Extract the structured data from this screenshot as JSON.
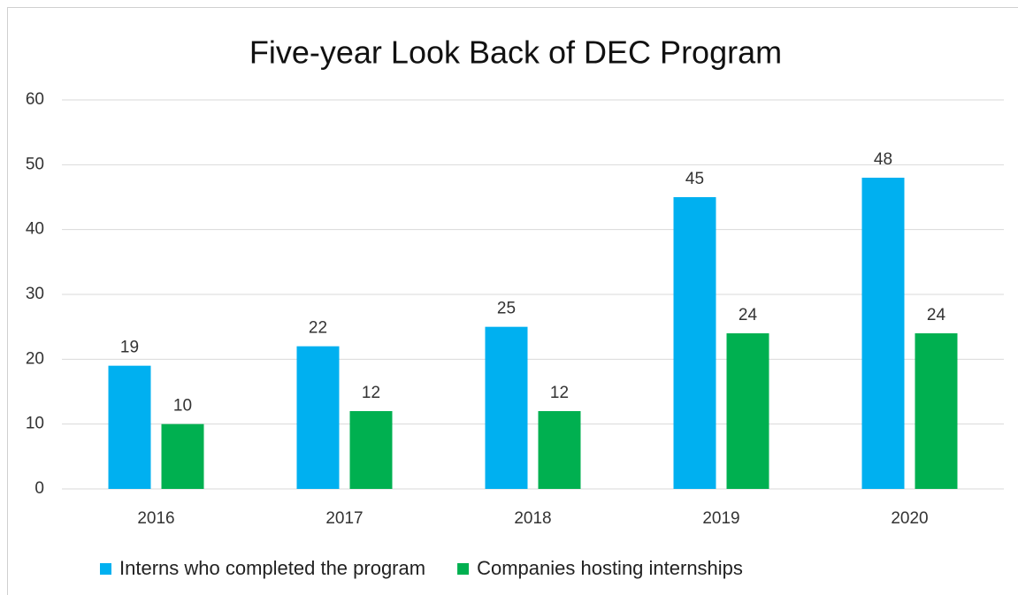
{
  "chart_data": {
    "type": "bar",
    "title": "Five-year Look Back of DEC Program",
    "categories": [
      "2016",
      "2017",
      "2018",
      "2019",
      "2020"
    ],
    "series": [
      {
        "name": "Interns who completed the program",
        "color": "#00b0f0",
        "values": [
          19,
          22,
          25,
          45,
          48
        ]
      },
      {
        "name": "Companies hosting internships",
        "color": "#00b050",
        "values": [
          10,
          12,
          12,
          24,
          24
        ]
      }
    ],
    "ylim": [
      0,
      60
    ],
    "yticks": [
      0,
      10,
      20,
      30,
      40,
      50,
      60
    ],
    "grid": true,
    "legend": "bottom"
  }
}
